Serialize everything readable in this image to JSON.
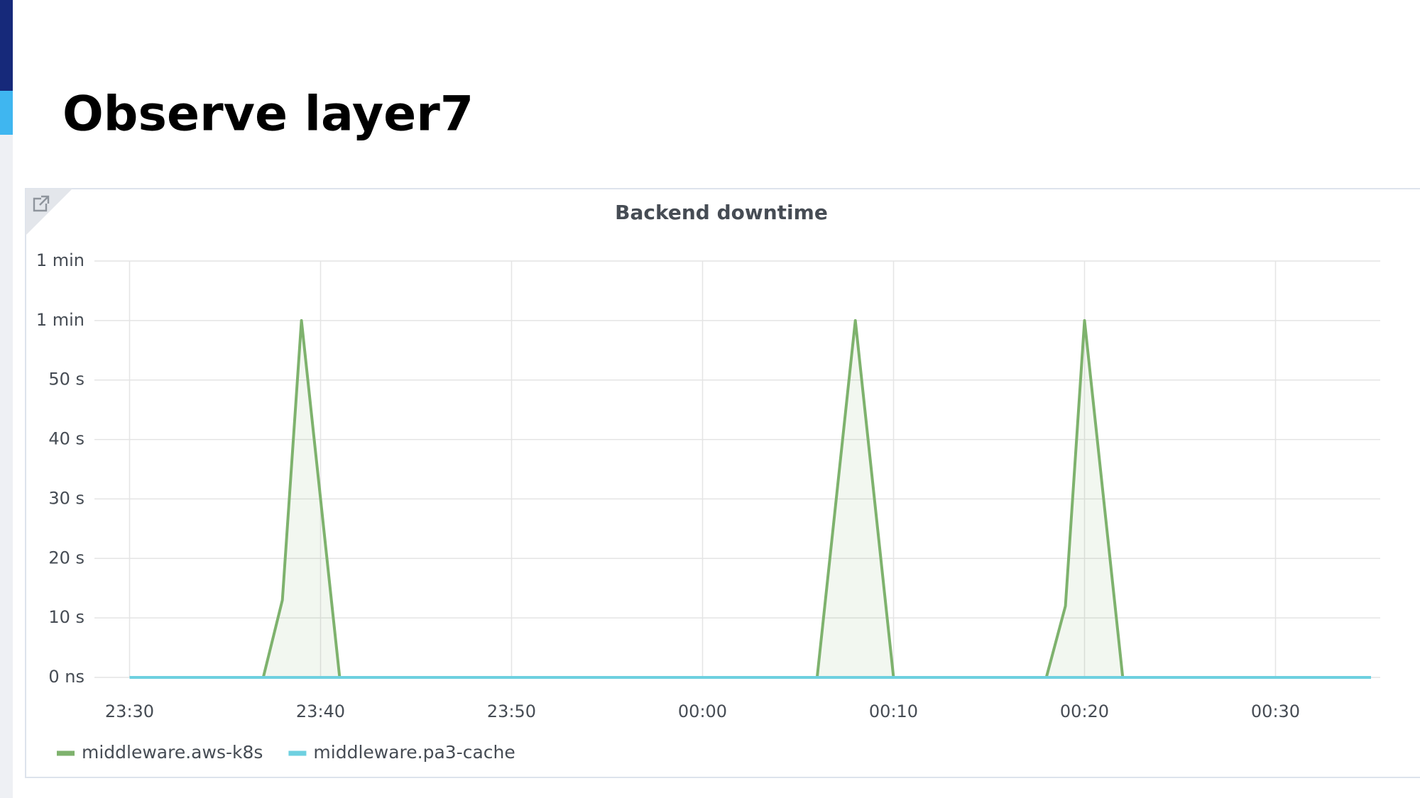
{
  "slide_title": "Observe layer7",
  "chart_data": {
    "type": "line",
    "title": "Backend downtime",
    "x": [
      "23:30",
      "23:37",
      "23:38",
      "23:39",
      "23:41",
      "00:06",
      "00:08",
      "00:10",
      "00:18",
      "00:19",
      "00:20",
      "00:22",
      "00:35"
    ],
    "series": [
      {
        "name": "middleware.aws-k8s",
        "color": "#7eb26d",
        "values": [
          0,
          0,
          13,
          60,
          0,
          0,
          60,
          0,
          0,
          12,
          60,
          0,
          0
        ]
      },
      {
        "name": "middleware.pa3-cache",
        "color": "#6ed0e0",
        "values": [
          0,
          0,
          0,
          0,
          0,
          0,
          0,
          0,
          0,
          0,
          0,
          0,
          0
        ]
      }
    ],
    "ylim": [
      0,
      70
    ],
    "yticks": [
      {
        "value": 0,
        "label": "0 ns"
      },
      {
        "value": 10,
        "label": "10 s"
      },
      {
        "value": 20,
        "label": "20 s"
      },
      {
        "value": 30,
        "label": "30 s"
      },
      {
        "value": 40,
        "label": "40 s"
      },
      {
        "value": 50,
        "label": "50 s"
      },
      {
        "value": 60,
        "label": "1 min"
      },
      {
        "value": 70,
        "label": "1 min"
      }
    ],
    "xticks": [
      "23:30",
      "23:40",
      "23:50",
      "00:00",
      "00:10",
      "00:20",
      "00:30"
    ],
    "grid": true,
    "legend": "bottom-left"
  }
}
